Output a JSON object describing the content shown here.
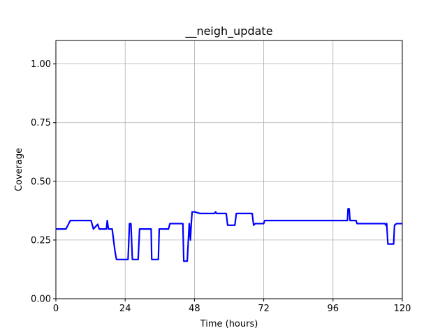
{
  "chart_data": {
    "type": "line",
    "title": "__neigh_update",
    "xlabel": "Time (hours)",
    "ylabel": "Coverage",
    "xlim": [
      0,
      120
    ],
    "ylim": [
      0,
      1.1
    ],
    "xticks": [
      0,
      24,
      48,
      72,
      96,
      120
    ],
    "yticks": [
      0.0,
      0.25,
      0.5,
      0.75,
      1.0
    ],
    "xtick_labels": [
      "0",
      "24",
      "48",
      "72",
      "96",
      "120"
    ],
    "ytick_labels": [
      "0.00",
      "0.25",
      "0.50",
      "0.75",
      "1.00"
    ],
    "grid": true,
    "series": [
      {
        "color": "#0000ff",
        "x": [
          0,
          3.5,
          5,
          12,
          12.2,
          13,
          14.5,
          15,
          17.5,
          17.8,
          18.2,
          19.5,
          20.5,
          21,
          25,
          25.5,
          26,
          26.5,
          27,
          28.5,
          29,
          33,
          33.2,
          35.5,
          35.8,
          39,
          39.5,
          44,
          44.3,
          45.5,
          45.8,
          46.2,
          46.6,
          46.9,
          47.2,
          47.5,
          48,
          50,
          51,
          55,
          55.3,
          55.7,
          56,
          59,
          59.5,
          62,
          62.5,
          68,
          68.5,
          69,
          72,
          72.3,
          101,
          101.2,
          101.6,
          101.9,
          102.5,
          104,
          104.3,
          114,
          114.3,
          114.6,
          115,
          117,
          117.3,
          118,
          120
        ],
        "y": [
          0.297,
          0.297,
          0.333,
          0.333,
          0.333,
          0.297,
          0.317,
          0.297,
          0.297,
          0.333,
          0.297,
          0.297,
          0.2,
          0.167,
          0.167,
          0.32,
          0.32,
          0.167,
          0.167,
          0.167,
          0.297,
          0.297,
          0.167,
          0.167,
          0.297,
          0.297,
          0.32,
          0.32,
          0.16,
          0.16,
          0.23,
          0.32,
          0.25,
          0.32,
          0.37,
          0.37,
          0.37,
          0.363,
          0.363,
          0.363,
          0.37,
          0.363,
          0.363,
          0.363,
          0.313,
          0.313,
          0.363,
          0.363,
          0.313,
          0.32,
          0.32,
          0.333,
          0.333,
          0.383,
          0.383,
          0.333,
          0.333,
          0.333,
          0.32,
          0.32,
          0.313,
          0.32,
          0.233,
          0.233,
          0.313,
          0.32,
          0.32
        ]
      }
    ]
  }
}
